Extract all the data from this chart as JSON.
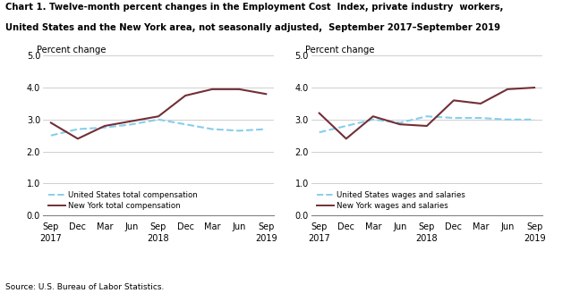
{
  "title_line1": "Chart 1. Twelve-month percent changes in the Employment Cost  Index, private industry  workers,",
  "title_line2": "United States and the New York area, not seasonally adjusted,  September 2017–September 2019",
  "source": "Source: U.S. Bureau of Labor Statistics.",
  "ylabel": "Percent change",
  "ylim": [
    0.0,
    5.0
  ],
  "yticks": [
    0.0,
    1.0,
    2.0,
    3.0,
    4.0,
    5.0
  ],
  "x_labels_top": [
    "Sep",
    "Dec",
    "Mar",
    "Jun",
    "Sep",
    "Dec",
    "Mar",
    "Jun",
    "Sep"
  ],
  "x_labels_year": [
    "2017",
    "",
    "",
    "",
    "2018",
    "",
    "",
    "",
    "2019"
  ],
  "us_color": "#87CEEB",
  "ny_color": "#722F37",
  "us_linestyle": "--",
  "ny_linestyle": "-",
  "linewidth": 1.5,
  "left_us_data": [
    2.5,
    2.7,
    2.75,
    2.85,
    3.0,
    2.85,
    2.7,
    2.65,
    2.7
  ],
  "left_ny_data": [
    2.9,
    2.4,
    2.8,
    2.95,
    3.1,
    3.75,
    3.95,
    3.95,
    3.8
  ],
  "right_us_data": [
    2.6,
    2.8,
    3.0,
    2.9,
    3.1,
    3.05,
    3.05,
    3.0,
    3.0
  ],
  "right_ny_data": [
    3.2,
    2.4,
    3.1,
    2.85,
    2.8,
    3.6,
    3.5,
    3.95,
    4.0
  ],
  "left_legend1": "United States total compensation",
  "left_legend2": "New York total compensation",
  "right_legend1": "United States wages and salaries",
  "right_legend2": "New York wages and salaries",
  "grid_color": "#c8c8c8",
  "axis_color": "#808080"
}
